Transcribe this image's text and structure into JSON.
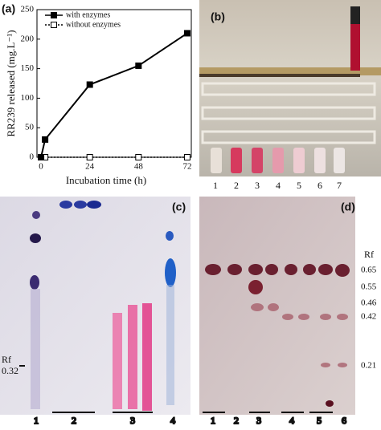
{
  "chart_data": {
    "type": "line",
    "panel_label": "(a)",
    "x_label": "Incubation time (h)",
    "y_label": "RR239 released (mg.L⁻¹)",
    "x": [
      0,
      2,
      24,
      48,
      72
    ],
    "series": [
      {
        "name": "with enzymes",
        "color": "#000000",
        "marker": "filled-square",
        "line_style": "solid",
        "values": [
          0,
          30,
          123,
          155,
          210
        ]
      },
      {
        "name": "without enzymes",
        "color": "#000000",
        "marker": "open-square",
        "line_style": "dotted",
        "values": [
          0,
          0,
          0,
          0,
          0
        ]
      }
    ],
    "xlim": [
      -2,
      74
    ],
    "ylim": [
      0,
      250
    ],
    "xticks": [
      0,
      24,
      48,
      72
    ],
    "yticks": [
      0,
      50,
      100,
      150,
      200,
      250
    ],
    "legend": "upper-left"
  },
  "photo_b": {
    "label": "(b)",
    "lanes": [
      "1",
      "2",
      "3",
      "4",
      "5",
      "6",
      "7"
    ]
  },
  "photo_c": {
    "label": "(c)",
    "rf_title": "Rf",
    "rf_marks": [
      "0.32"
    ],
    "lanes": [
      "1",
      "2",
      "3",
      "4"
    ]
  },
  "photo_d": {
    "label": "(d)",
    "rf_title": "Rf",
    "rf_marks": [
      "0.65",
      "0.55",
      "0.46",
      "0.42",
      "0.21"
    ],
    "lanes": [
      "1",
      "2",
      "3",
      "4",
      "5",
      "6"
    ]
  }
}
